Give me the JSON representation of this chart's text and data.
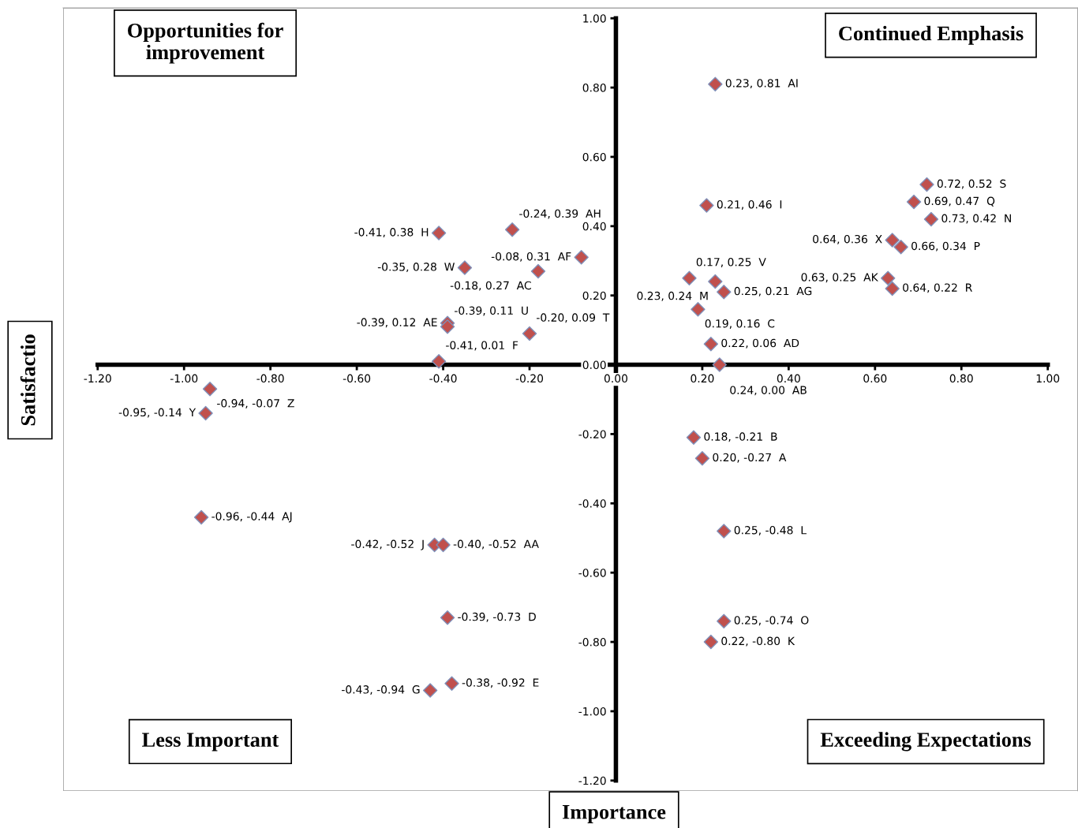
{
  "chart_data": {
    "type": "scatter",
    "xlabel": "Importance",
    "ylabel": "Satisfactio",
    "annotations": [
      "Opportunities for\nimprovement",
      "Continued Emphasis",
      "Less Important",
      "Exceeding Expectations"
    ],
    "x": [
      0.23,
      0.72,
      0.69,
      0.73,
      0.21,
      0.64,
      0.66,
      0.63,
      0.64,
      0.17,
      0.23,
      0.25,
      0.19,
      0.22,
      0.24,
      0.18,
      0.2,
      0.25,
      0.25,
      0.22,
      -0.24,
      -0.41,
      -0.08,
      -0.35,
      -0.18,
      -0.39,
      -0.39,
      -0.41,
      -0.2,
      -0.94,
      -0.95,
      -0.96,
      -0.42,
      -0.4,
      -0.39,
      -0.38,
      -0.43
    ],
    "series": [
      {
        "color": "#c0504d",
        "values": [
          0.81,
          0.52,
          0.47,
          0.42,
          0.46,
          0.36,
          0.34,
          0.25,
          0.22,
          0.25,
          0.24,
          0.21,
          0.16,
          0.06,
          0.0,
          -0.21,
          -0.27,
          -0.48,
          -0.74,
          -0.8,
          0.39,
          0.38,
          0.31,
          0.28,
          0.27,
          0.12,
          0.11,
          0.01,
          0.09,
          -0.07,
          -0.14,
          -0.44,
          -0.52,
          -0.52,
          -0.73,
          -0.92,
          -0.94
        ],
        "value_labels": [
          "0.23, 0.81  AI",
          "0.72, 0.52  S",
          "0.69, 0.47  Q",
          "0.73, 0.42  N",
          "0.21, 0.46  I",
          "0.64, 0.36  X",
          "0.66, 0.34  P",
          "0.63, 0.25  AK",
          "0.64, 0.22  R",
          "0.17, 0.25  V",
          "0.23, 0.24  M",
          "0.25, 0.21  AG",
          "0.19, 0.16  C",
          "0.22, 0.06  AD",
          "0.24, 0.00  AB",
          "0.18, -0.21  B",
          "0.20, -0.27  A",
          "0.25, -0.48  L",
          "0.25, -0.74  O",
          "0.22, -0.80  K",
          "-0.24, 0.39  AH",
          "-0.41, 0.38  H",
          "-0.08, 0.31  AF",
          "-0.35, 0.28  W",
          "-0.18, 0.27  AC",
          "-0.39, 0.12  AE",
          "-0.39, 0.11  U",
          "-0.41, 0.01  F",
          "-0.20, 0.09  T",
          "-0.94, -0.07  Z",
          "-0.95, -0.14  Y",
          "-0.96, -0.44  AJ",
          "-0.42, -0.52  J",
          "-0.40, -0.52  AA",
          "-0.39, -0.73  D",
          "-0.38, -0.92  E",
          "-0.43, -0.94  G"
        ]
      }
    ],
    "marker": "diamond",
    "xlim": [
      -1.28,
      1.07
    ],
    "ylim": [
      -1.23,
      1.03
    ],
    "xticks": [
      {
        "value": -1.2,
        "label": "-1.20"
      },
      {
        "value": -1.0,
        "label": "-1.00"
      },
      {
        "value": -0.8,
        "label": "-0.80"
      },
      {
        "value": -0.6,
        "label": "-0.60"
      },
      {
        "value": -0.4,
        "label": "-0.40"
      },
      {
        "value": -0.2,
        "label": "-0.20"
      },
      {
        "value": 0,
        "label": "0.00"
      },
      {
        "value": 0.2,
        "label": "0.20"
      },
      {
        "value": 0.4,
        "label": "0.40"
      },
      {
        "value": 0.6,
        "label": "0.60"
      },
      {
        "value": 0.8,
        "label": "0.80"
      },
      {
        "value": 1.0,
        "label": "1.00"
      }
    ],
    "yticks": [
      {
        "value": -1.2,
        "label": "-1.20"
      },
      {
        "value": -1.0,
        "label": "-1.00"
      },
      {
        "value": -0.8,
        "label": "-0.80"
      },
      {
        "value": -0.6,
        "label": "-0.60"
      },
      {
        "value": -0.4,
        "label": "-0.40"
      },
      {
        "value": -0.2,
        "label": "-0.20"
      },
      {
        "value": 0,
        "label": "0.00"
      },
      {
        "value": 0.2,
        "label": "0.20"
      },
      {
        "value": 0.4,
        "label": "0.40"
      },
      {
        "value": 0.6,
        "label": "0.60"
      },
      {
        "value": 0.8,
        "label": "0.80"
      },
      {
        "value": 1.0,
        "label": "1.00"
      }
    ]
  }
}
